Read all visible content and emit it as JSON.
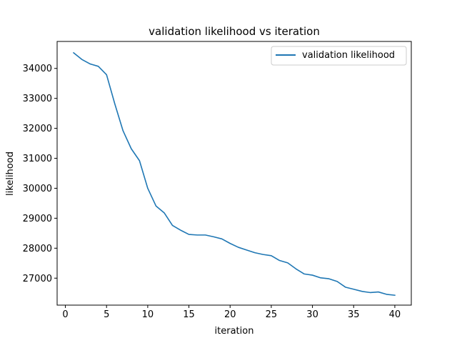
{
  "chart_data": {
    "type": "line",
    "title": "validation likelihood vs iteration",
    "xlabel": "iteration",
    "ylabel": "likelihood",
    "xlim": [
      -1,
      42
    ],
    "ylim": [
      26100,
      34900
    ],
    "xticks": [
      0,
      5,
      10,
      15,
      20,
      25,
      30,
      35,
      40
    ],
    "yticks": [
      27000,
      28000,
      29000,
      30000,
      31000,
      32000,
      33000,
      34000
    ],
    "grid": false,
    "legend_position": "top-right",
    "series": [
      {
        "name": "validation likelihood",
        "color": "#1f77b4",
        "x": [
          1,
          2,
          3,
          4,
          5,
          6,
          7,
          8,
          9,
          10,
          11,
          12,
          13,
          14,
          15,
          16,
          17,
          18,
          19,
          20,
          21,
          22,
          23,
          24,
          25,
          26,
          27,
          28,
          29,
          30,
          31,
          32,
          33,
          34,
          35,
          36,
          37,
          38,
          39,
          40
        ],
        "y": [
          34520,
          34300,
          34150,
          34070,
          33790,
          32820,
          31920,
          31320,
          30920,
          30000,
          29410,
          29180,
          28760,
          28600,
          28460,
          28440,
          28440,
          28380,
          28310,
          28160,
          28030,
          27940,
          27850,
          27790,
          27750,
          27590,
          27510,
          27310,
          27140,
          27100,
          27010,
          26980,
          26890,
          26700,
          26630,
          26560,
          26520,
          26540,
          26460,
          26430
        ]
      }
    ]
  }
}
